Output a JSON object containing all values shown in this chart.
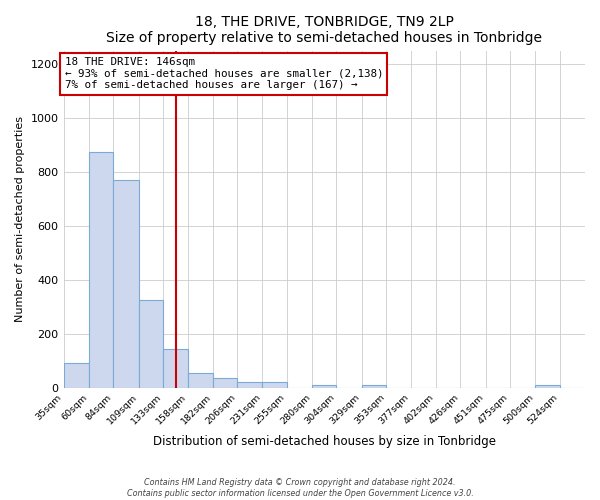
{
  "title": "18, THE DRIVE, TONBRIDGE, TN9 2LP",
  "subtitle": "Size of property relative to semi-detached houses in Tonbridge",
  "xlabel": "Distribution of semi-detached houses by size in Tonbridge",
  "ylabel": "Number of semi-detached properties",
  "bin_labels": [
    "35sqm",
    "60sqm",
    "84sqm",
    "109sqm",
    "133sqm",
    "158sqm",
    "182sqm",
    "206sqm",
    "231sqm",
    "255sqm",
    "280sqm",
    "304sqm",
    "329sqm",
    "353sqm",
    "377sqm",
    "402sqm",
    "426sqm",
    "451sqm",
    "475sqm",
    "500sqm",
    "524sqm"
  ],
  "bin_edges": [
    35,
    60,
    84,
    109,
    133,
    158,
    182,
    206,
    231,
    255,
    280,
    304,
    329,
    353,
    377,
    402,
    426,
    451,
    475,
    500,
    524,
    549
  ],
  "bar_values": [
    90,
    875,
    770,
    325,
    143,
    55,
    35,
    20,
    20,
    0,
    10,
    0,
    10,
    0,
    0,
    0,
    0,
    0,
    0,
    10,
    0
  ],
  "property_size": 146,
  "bar_color": "#cdd8ee",
  "bar_edge_color": "#7baad4",
  "line_color": "#cc0000",
  "annotation_box_edge": "#cc0000",
  "annotation_text_line1": "18 THE DRIVE: 146sqm",
  "annotation_text_line2": "← 93% of semi-detached houses are smaller (2,138)",
  "annotation_text_line3": "7% of semi-detached houses are larger (167) →",
  "ylim": [
    0,
    1250
  ],
  "yticks": [
    0,
    200,
    400,
    600,
    800,
    1000,
    1200
  ],
  "footer_line1": "Contains HM Land Registry data © Crown copyright and database right 2024.",
  "footer_line2": "Contains public sector information licensed under the Open Government Licence v3.0.",
  "background_color": "#ffffff",
  "plot_bg_color": "#ffffff",
  "grid_color": "#cccccc"
}
